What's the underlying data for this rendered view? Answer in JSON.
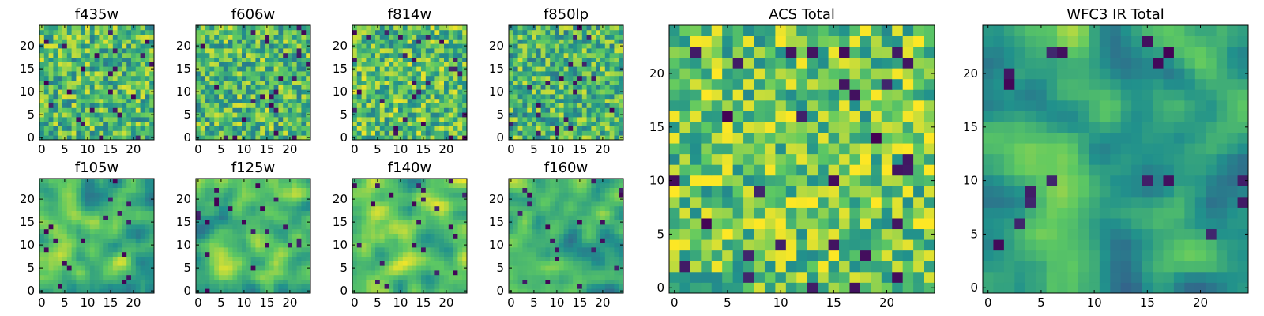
{
  "figure": {
    "colormap": "viridis",
    "colormap_stops": [
      "#440154",
      "#3b528b",
      "#21918c",
      "#5ec962",
      "#fde725"
    ]
  },
  "chart_data": [
    {
      "id": "f435w",
      "type": "heatmap",
      "title": "f435w",
      "grid": [
        25,
        25
      ],
      "xlim": [
        0,
        24
      ],
      "ylim": [
        0,
        24
      ],
      "xticks": [
        0,
        5,
        10,
        15,
        20
      ],
      "yticks": [
        0,
        5,
        10,
        15,
        20
      ],
      "xtick_labels": [
        "0",
        "5",
        "10",
        "15",
        "20"
      ],
      "ytick_labels": [
        "0",
        "5",
        "10",
        "15",
        "20"
      ],
      "value_range": [
        0,
        1
      ],
      "mean_level": 0.68,
      "smoothness": 0,
      "seed": 11
    },
    {
      "id": "f606w",
      "type": "heatmap",
      "title": "f606w",
      "grid": [
        25,
        25
      ],
      "xlim": [
        0,
        24
      ],
      "ylim": [
        0,
        24
      ],
      "xticks": [
        0,
        5,
        10,
        15,
        20
      ],
      "yticks": [
        0,
        5,
        10,
        15,
        20
      ],
      "xtick_labels": [
        "0",
        "5",
        "10",
        "15",
        "20"
      ],
      "ytick_labels": [
        "0",
        "5",
        "10",
        "15",
        "20"
      ],
      "value_range": [
        0,
        1
      ],
      "mean_level": 0.68,
      "smoothness": 0,
      "seed": 23
    },
    {
      "id": "f814w",
      "type": "heatmap",
      "title": "f814w",
      "grid": [
        25,
        25
      ],
      "xlim": [
        0,
        24
      ],
      "ylim": [
        0,
        24
      ],
      "xticks": [
        0,
        5,
        10,
        15,
        20
      ],
      "yticks": [
        0,
        5,
        10,
        15,
        20
      ],
      "xtick_labels": [
        "0",
        "5",
        "10",
        "15",
        "20"
      ],
      "ytick_labels": [
        "0",
        "5",
        "10",
        "15",
        "20"
      ],
      "value_range": [
        0,
        1
      ],
      "mean_level": 0.7,
      "smoothness": 0,
      "seed": 37
    },
    {
      "id": "f850lp",
      "type": "heatmap",
      "title": "f850lp",
      "grid": [
        25,
        25
      ],
      "xlim": [
        0,
        24
      ],
      "ylim": [
        0,
        24
      ],
      "xticks": [
        0,
        5,
        10,
        15,
        20
      ],
      "yticks": [
        0,
        5,
        10,
        15,
        20
      ],
      "xtick_labels": [
        "0",
        "5",
        "10",
        "15",
        "20"
      ],
      "ytick_labels": [
        "0",
        "5",
        "10",
        "15",
        "20"
      ],
      "value_range": [
        0,
        1
      ],
      "mean_level": 0.66,
      "smoothness": 0,
      "seed": 41
    },
    {
      "id": "f105w",
      "type": "heatmap",
      "title": "f105w",
      "grid": [
        25,
        25
      ],
      "xlim": [
        0,
        24
      ],
      "ylim": [
        0,
        24
      ],
      "xticks": [
        0,
        5,
        10,
        15,
        20
      ],
      "yticks": [
        0,
        5,
        10,
        15,
        20
      ],
      "xtick_labels": [
        "0",
        "5",
        "10",
        "15",
        "20"
      ],
      "ytick_labels": [
        "0",
        "5",
        "10",
        "15",
        "20"
      ],
      "value_range": [
        0,
        1
      ],
      "mean_level": 0.66,
      "smoothness": 2,
      "seed": 53
    },
    {
      "id": "f125w",
      "type": "heatmap",
      "title": "f125w",
      "grid": [
        25,
        25
      ],
      "xlim": [
        0,
        24
      ],
      "ylim": [
        0,
        24
      ],
      "xticks": [
        0,
        5,
        10,
        15,
        20
      ],
      "yticks": [
        0,
        5,
        10,
        15,
        20
      ],
      "xtick_labels": [
        "0",
        "5",
        "10",
        "15",
        "20"
      ],
      "ytick_labels": [
        "0",
        "5",
        "10",
        "15",
        "20"
      ],
      "value_range": [
        0,
        1
      ],
      "mean_level": 0.66,
      "smoothness": 2,
      "seed": 67
    },
    {
      "id": "f140w",
      "type": "heatmap",
      "title": "f140w",
      "grid": [
        25,
        25
      ],
      "xlim": [
        0,
        24
      ],
      "ylim": [
        0,
        24
      ],
      "xticks": [
        0,
        5,
        10,
        15,
        20
      ],
      "yticks": [
        0,
        5,
        10,
        15,
        20
      ],
      "xtick_labels": [
        "0",
        "5",
        "10",
        "15",
        "20"
      ],
      "ytick_labels": [
        "0",
        "5",
        "10",
        "15",
        "20"
      ],
      "value_range": [
        0,
        1
      ],
      "mean_level": 0.7,
      "smoothness": 2,
      "seed": 71
    },
    {
      "id": "f160w",
      "type": "heatmap",
      "title": "f160w",
      "grid": [
        25,
        25
      ],
      "xlim": [
        0,
        24
      ],
      "ylim": [
        0,
        24
      ],
      "xticks": [
        0,
        5,
        10,
        15,
        20
      ],
      "yticks": [
        0,
        5,
        10,
        15,
        20
      ],
      "xtick_labels": [
        "0",
        "5",
        "10",
        "15",
        "20"
      ],
      "ytick_labels": [
        "0",
        "5",
        "10",
        "15",
        "20"
      ],
      "value_range": [
        0,
        1
      ],
      "mean_level": 0.64,
      "smoothness": 2,
      "seed": 83
    },
    {
      "id": "acs_total",
      "type": "heatmap",
      "title": "ACS Total",
      "grid": [
        25,
        25
      ],
      "xlim": [
        0,
        24
      ],
      "ylim": [
        0,
        24
      ],
      "xticks": [
        0,
        5,
        10,
        15,
        20
      ],
      "yticks": [
        0,
        5,
        10,
        15,
        20
      ],
      "xtick_labels": [
        "0",
        "5",
        "10",
        "15",
        "20"
      ],
      "ytick_labels": [
        "0",
        "5",
        "10",
        "15",
        "20"
      ],
      "value_range": [
        0,
        1
      ],
      "mean_level": 0.74,
      "smoothness": 0,
      "seed": 97
    },
    {
      "id": "wfc3_ir_total",
      "type": "heatmap",
      "title": "WFC3 IR Total",
      "grid": [
        25,
        25
      ],
      "xlim": [
        0,
        24
      ],
      "ylim": [
        0,
        24
      ],
      "xticks": [
        0,
        5,
        10,
        15,
        20
      ],
      "yticks": [
        0,
        5,
        10,
        15,
        20
      ],
      "xtick_labels": [
        "0",
        "5",
        "10",
        "15",
        "20"
      ],
      "ytick_labels": [
        "0",
        "5",
        "10",
        "15",
        "20"
      ],
      "value_range": [
        0,
        1
      ],
      "mean_level": 0.6,
      "smoothness": 2,
      "seed": 101
    }
  ]
}
